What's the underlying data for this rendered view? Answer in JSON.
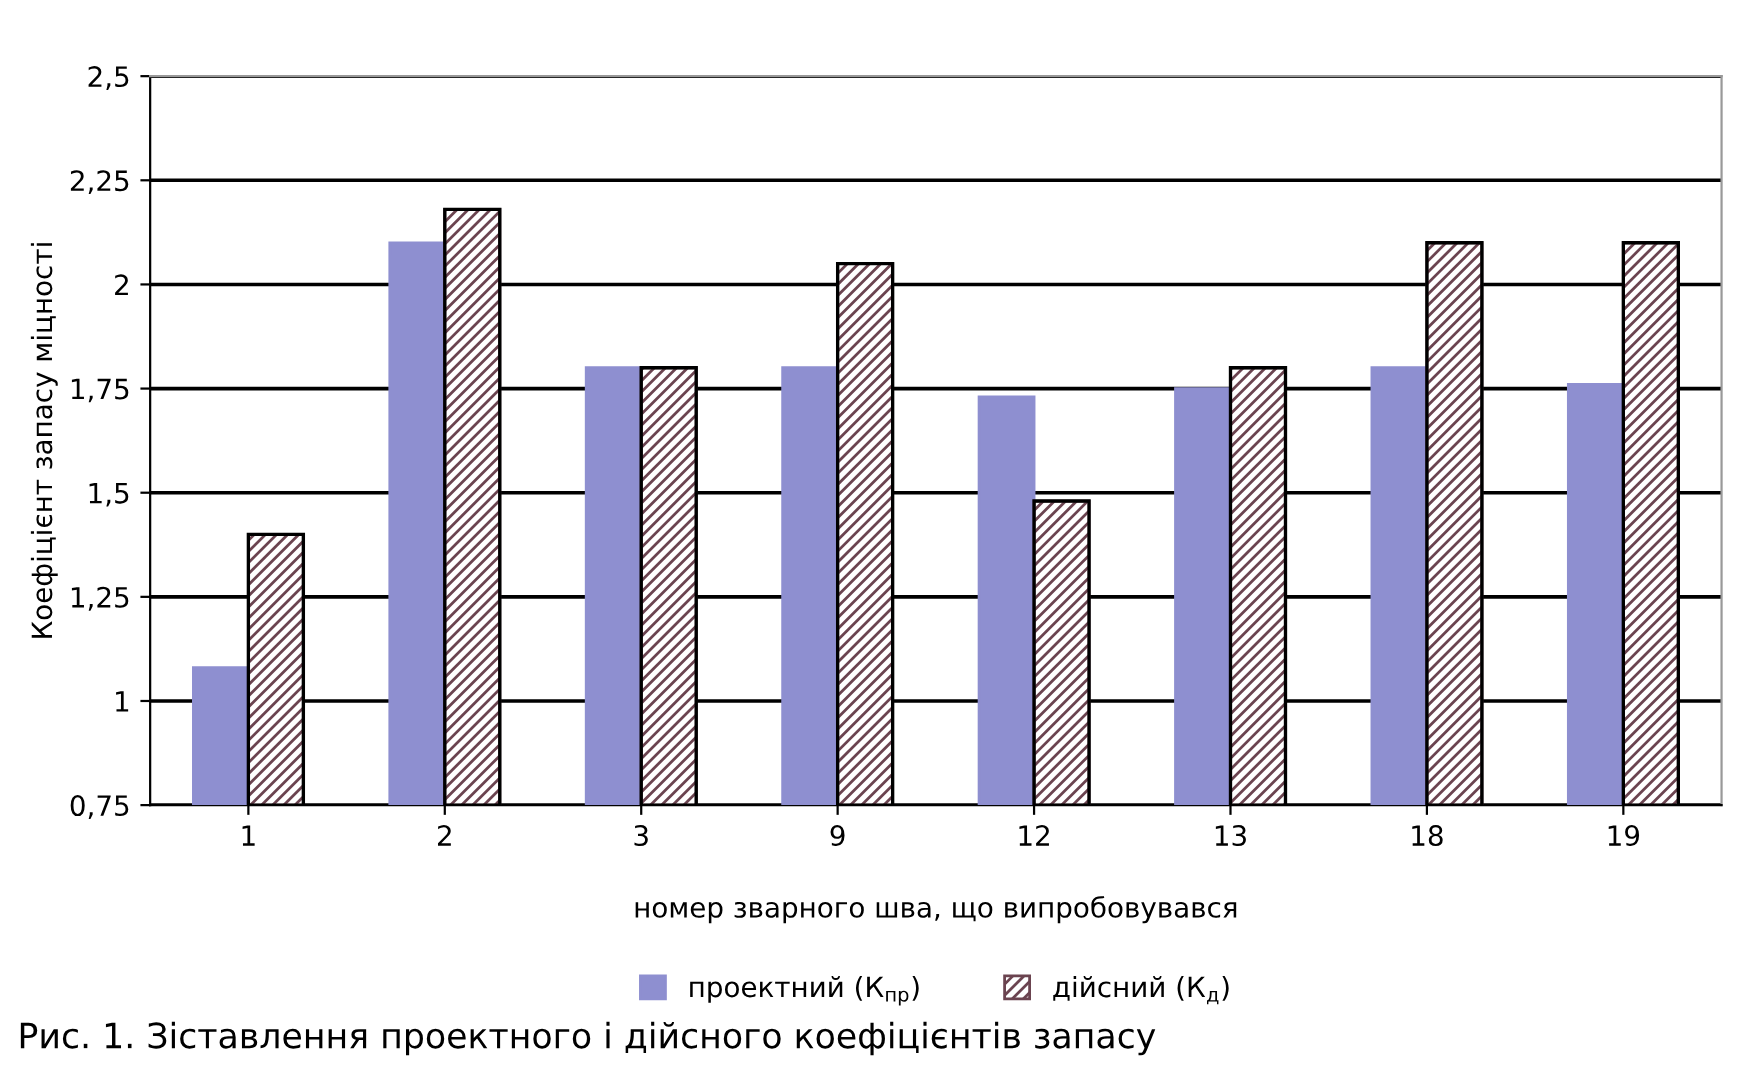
{
  "chart_data": {
    "type": "bar",
    "categories": [
      "1",
      "2",
      "3",
      "9",
      "12",
      "13",
      "18",
      "19"
    ],
    "series": [
      {
        "name": "проектний (К$_{пр}$)",
        "color": "#8e8fd0",
        "values": [
          1.08,
          2.1,
          1.8,
          1.8,
          1.73,
          1.75,
          1.8,
          1.76
        ]
      },
      {
        "name": "дійсний (К$_{д}$)",
        "color": "#6b4450",
        "values": [
          1.4,
          2.18,
          1.8,
          2.05,
          1.48,
          1.8,
          2.1,
          2.1
        ]
      }
    ],
    "xlabel": "номер зварного шва, що випробовувався",
    "ylabel": "Коефіцієнт запасу міцності",
    "ylim": [
      0.75,
      2.5
    ],
    "yticks": [
      {
        "value": 0.75,
        "label": "0,75"
      },
      1,
      {
        "value": 1.25,
        "label": "1,25"
      },
      {
        "value": 1.5,
        "label": "1,5"
      },
      {
        "value": 1.75,
        "label": "1,75"
      },
      2,
      {
        "value": 2.25,
        "label": "2,25"
      },
      {
        "value": 2.5,
        "label": "2,5"
      }
    ],
    "grid": "y",
    "legend": "bottom",
    "annotations": [
      "Рис. 1. Зіставлення проектного і дійсного коефіцієнтів запасу"
    ]
  }
}
